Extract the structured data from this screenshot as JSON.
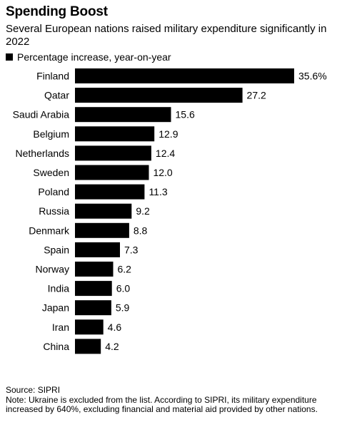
{
  "header": {
    "title": "Spending Boost",
    "subtitle": "Several European nations raised military expenditure significantly in 2022"
  },
  "legend": {
    "label": "Percentage increase, year-on-year"
  },
  "chart_data": {
    "type": "bar",
    "orientation": "horizontal",
    "title": "Spending Boost",
    "categories": [
      "Finland",
      "Qatar",
      "Saudi Arabia",
      "Belgium",
      "Netherlands",
      "Sweden",
      "Poland",
      "Russia",
      "Denmark",
      "Spain",
      "Norway",
      "India",
      "Japan",
      "Iran",
      "China"
    ],
    "values": [
      35.6,
      27.2,
      15.6,
      12.9,
      12.4,
      12.0,
      11.3,
      9.2,
      8.8,
      7.3,
      6.2,
      6.0,
      5.9,
      4.6,
      4.2
    ],
    "value_labels": [
      "35.6%",
      "27.2",
      "15.6",
      "12.9",
      "12.4",
      "12.0",
      "11.3",
      "9.2",
      "8.8",
      "7.3",
      "6.2",
      "6.0",
      "5.9",
      "4.6",
      "4.2"
    ],
    "series": [
      {
        "name": "Percentage increase, year-on-year",
        "color": "#000000"
      }
    ],
    "xlim": [
      0,
      35.6
    ],
    "grid": false,
    "legend_position": "top-left"
  },
  "footer": {
    "source": "Source: SIPRI",
    "note": "Note: Ukraine is excluded from the list. According to SIPRI, its military expenditure increased by 640%, excluding financial and material aid provided by other nations."
  }
}
